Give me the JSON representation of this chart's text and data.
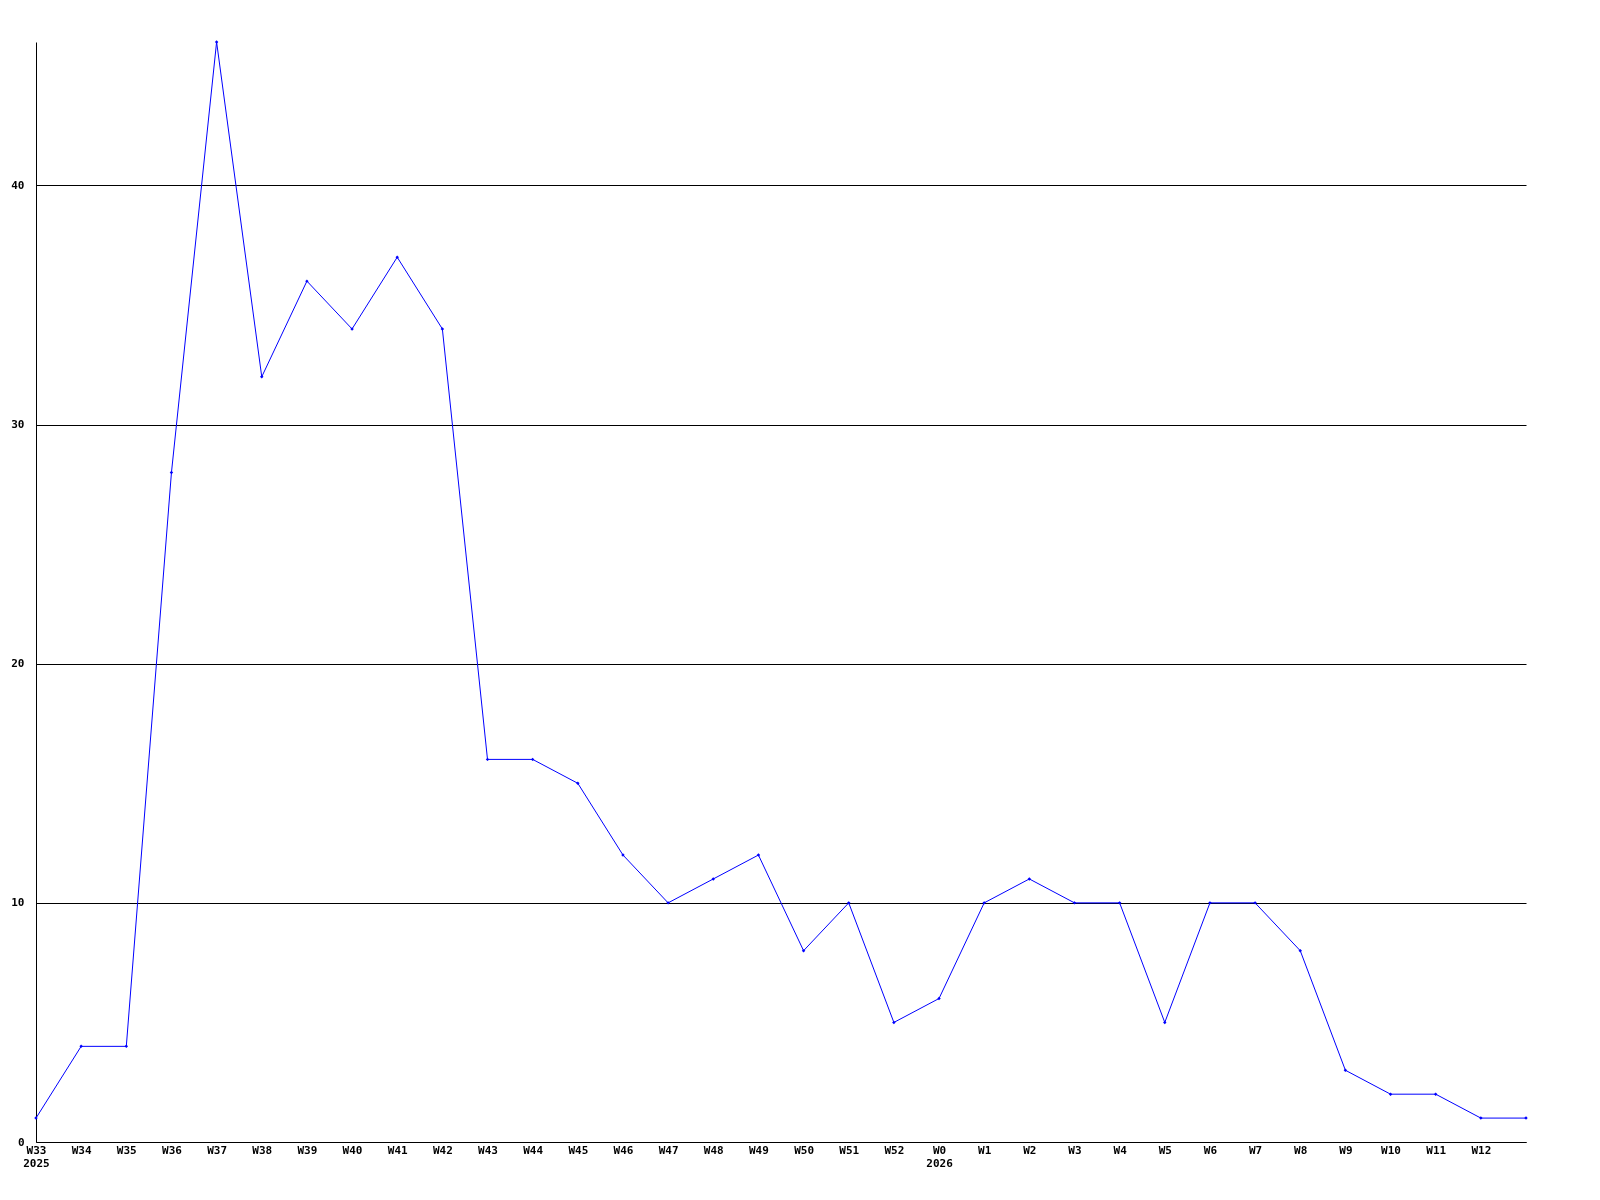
{
  "chart_data": {
    "type": "line",
    "categories": [
      "W33\n2025",
      "W34",
      "W35",
      "W36",
      "W37",
      "W38",
      "W39",
      "W40",
      "W41",
      "W42",
      "W43",
      "W44",
      "W45",
      "W46",
      "W47",
      "W48",
      "W49",
      "W50",
      "W51",
      "W52",
      "W0\n2026",
      "W1",
      "W2",
      "W3",
      "W4",
      "W5",
      "W6",
      "W7",
      "W8",
      "W9",
      "W10",
      "W11",
      "W12",
      null
    ],
    "series": [
      {
        "color": "#0000ff",
        "values": [
          1,
          4,
          4,
          28,
          46,
          32,
          36,
          34,
          37,
          34,
          16,
          16,
          15,
          12,
          10,
          11,
          12,
          8,
          10,
          5,
          6,
          10,
          11,
          10,
          10,
          5,
          10,
          10,
          8,
          3,
          2,
          2,
          1,
          1
        ]
      }
    ],
    "ylim": [
      0,
      46
    ],
    "yticks": [
      0,
      10,
      20,
      30,
      40
    ],
    "grid": "y",
    "marker": "diamond"
  }
}
